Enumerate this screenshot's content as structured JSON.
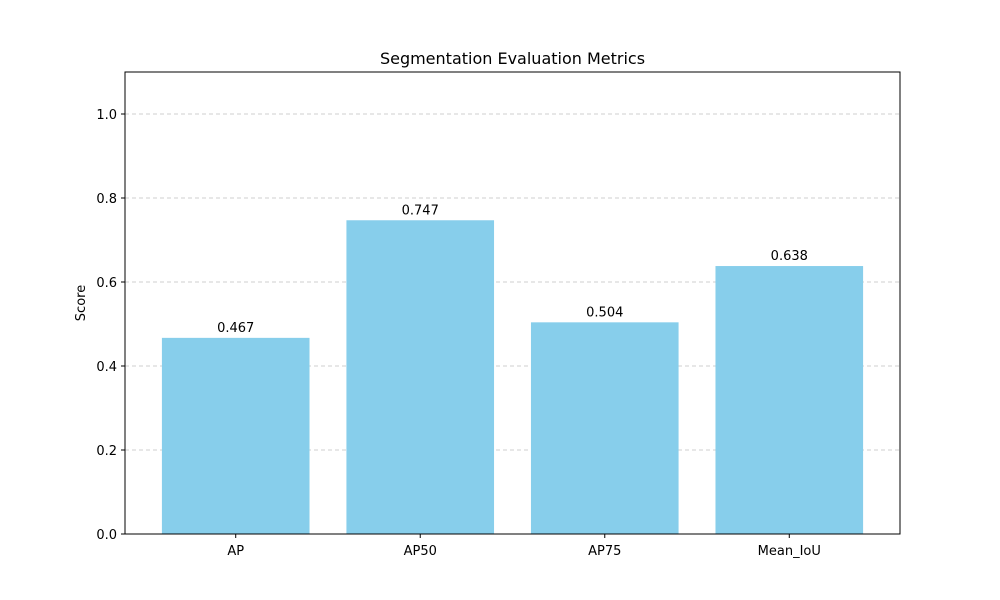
{
  "chart_data": {
    "type": "bar",
    "title": "Segmentation Evaluation Metrics",
    "xlabel": "",
    "ylabel": "Score",
    "categories": [
      "AP",
      "AP50",
      "AP75",
      "Mean_IoU"
    ],
    "values": [
      0.467,
      0.747,
      0.504,
      0.638
    ],
    "value_labels": [
      "0.467",
      "0.747",
      "0.504",
      "0.638"
    ],
    "ylim": [
      0,
      1.1
    ],
    "yticks": [
      0.0,
      0.2,
      0.4,
      0.6,
      0.8,
      1.0
    ],
    "ytick_labels": [
      "0.0",
      "0.2",
      "0.4",
      "0.6",
      "0.8",
      "1.0"
    ],
    "grid": "y-dashed",
    "bar_color": "#87CEEB"
  }
}
